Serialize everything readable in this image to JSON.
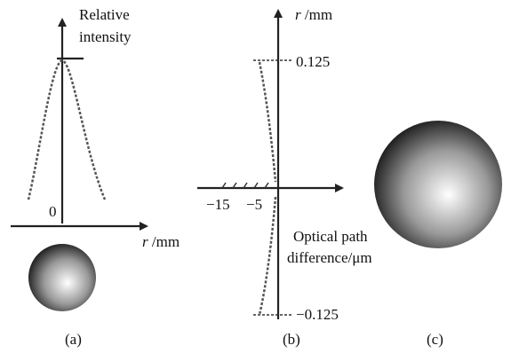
{
  "panel_a": {
    "y_axis_label_lines": [
      "Relative",
      "intensity"
    ],
    "origin_label": "0",
    "x_axis_symbol": "r",
    "x_axis_unit": " /mm",
    "caption": "(a)"
  },
  "panel_b": {
    "y_axis_symbol": "r",
    "y_axis_unit": " /mm",
    "y_tick_labels": [
      "0.125",
      "−0.125"
    ],
    "x_tick_labels": [
      "−15",
      "−5"
    ],
    "x_axis_label_lines": [
      "Optical path",
      "difference/μm"
    ],
    "caption": "(b)"
  },
  "panel_c": {
    "caption": "(c)"
  }
}
